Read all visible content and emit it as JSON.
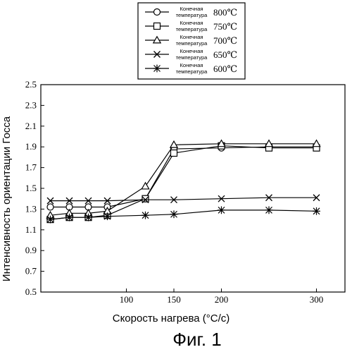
{
  "chart_data": {
    "type": "line",
    "xlabel": "Скорость нагрева (°C/c)",
    "ylabel": "Интенсивность ориентации Госса",
    "caption": "Фиг. 1",
    "xticks": [
      "100",
      "150",
      "200",
      "300"
    ],
    "xtick_values": [
      100,
      150,
      200,
      300
    ],
    "yticks": [
      "0.5",
      "0.7",
      "0.9",
      "1.1",
      "1.3",
      "1.5",
      "1.7",
      "1.9",
      "2.1",
      "2.3",
      "2.5"
    ],
    "ylim": [
      0.5,
      2.5
    ],
    "xlim": [
      10,
      330
    ],
    "grid": false,
    "legend_position": "top-center",
    "series": [
      {
        "name": "Конечная температура 800℃",
        "label": "Конечная температура",
        "temperature": "800℃",
        "marker": "circle",
        "x": [
          20,
          40,
          60,
          80,
          120,
          150,
          200,
          250,
          300
        ],
        "y": [
          1.32,
          1.32,
          1.32,
          1.32,
          1.4,
          1.88,
          1.89,
          1.9,
          1.9
        ]
      },
      {
        "name": "Конечная температура 750℃",
        "label": "Конечная температура",
        "temperature": "750℃",
        "marker": "square",
        "x": [
          20,
          40,
          60,
          80,
          120,
          150,
          200,
          250,
          300
        ],
        "y": [
          1.2,
          1.22,
          1.22,
          1.24,
          1.4,
          1.84,
          1.91,
          1.89,
          1.89
        ]
      },
      {
        "name": "Конечная температура 700℃",
        "label": "Конечная температура",
        "temperature": "700℃",
        "marker": "triangle",
        "x": [
          20,
          40,
          60,
          80,
          120,
          150,
          200,
          250,
          300
        ],
        "y": [
          1.24,
          1.26,
          1.26,
          1.28,
          1.52,
          1.92,
          1.93,
          1.93,
          1.93
        ]
      },
      {
        "name": "Конечная температура 650℃",
        "label": "Конечная температура",
        "temperature": "650℃",
        "marker": "x",
        "x": [
          20,
          40,
          60,
          80,
          120,
          150,
          200,
          250,
          300
        ],
        "y": [
          1.38,
          1.38,
          1.38,
          1.38,
          1.39,
          1.39,
          1.4,
          1.41,
          1.41
        ]
      },
      {
        "name": "Конечная температура 600℃",
        "label": "Конечная температура",
        "temperature": "600℃",
        "marker": "asterisk",
        "x": [
          20,
          40,
          60,
          80,
          120,
          150,
          200,
          250,
          300
        ],
        "y": [
          1.2,
          1.22,
          1.22,
          1.23,
          1.24,
          1.25,
          1.29,
          1.29,
          1.28
        ]
      }
    ]
  }
}
